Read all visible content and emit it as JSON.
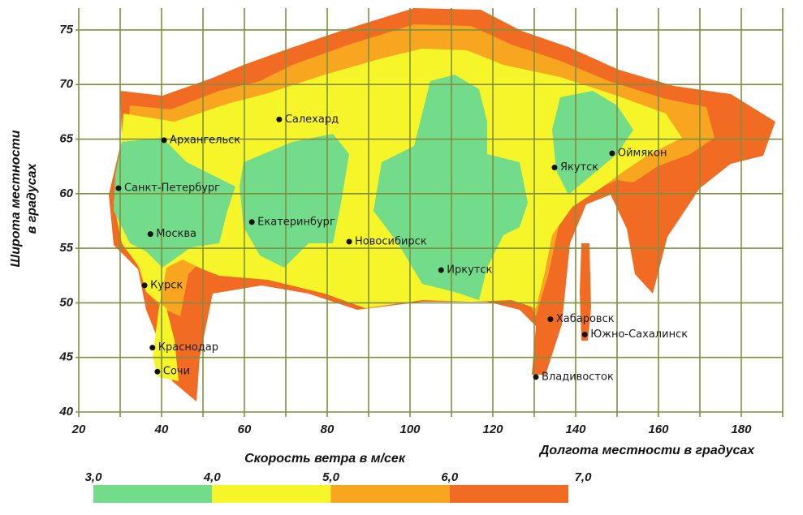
{
  "map": {
    "xlim": [
      20,
      190
    ],
    "ylim": [
      40,
      77
    ],
    "xticks": [
      20,
      40,
      60,
      80,
      100,
      120,
      140,
      160,
      180
    ],
    "grid_x": [
      20,
      30,
      40,
      50,
      60,
      70,
      80,
      90,
      100,
      110,
      120,
      130,
      140,
      150,
      160,
      170,
      180,
      190
    ],
    "yticks": [
      40,
      45,
      50,
      55,
      60,
      65,
      70,
      75
    ],
    "grid": true,
    "grid_color": "#7f8f3f",
    "x_label": "Долгота местности в градусах",
    "y_label": [
      "Широта местности",
      "в градусах"
    ],
    "cities": [
      {
        "name": "Салехард",
        "lon": 68.4,
        "lat": 66.8
      },
      {
        "name": "Архангельск",
        "lon": 40.6,
        "lat": 64.9
      },
      {
        "name": "Санкт-Петербург",
        "lon": 29.6,
        "lat": 60.5
      },
      {
        "name": "Москва",
        "lon": 37.3,
        "lat": 56.3
      },
      {
        "name": "Екатеринбург",
        "lon": 61.8,
        "lat": 57.4
      },
      {
        "name": "Новосибирск",
        "lon": 85.3,
        "lat": 55.6
      },
      {
        "name": "Иркутск",
        "lon": 107.5,
        "lat": 53.0
      },
      {
        "name": "Якутск",
        "lon": 134.9,
        "lat": 62.4
      },
      {
        "name": "Оймякон",
        "lon": 148.8,
        "lat": 63.7
      },
      {
        "name": "Курск",
        "lon": 35.9,
        "lat": 51.6
      },
      {
        "name": "Хабаровск",
        "lon": 133.9,
        "lat": 48.5
      },
      {
        "name": "Южно-Сахалинск",
        "lon": 142.2,
        "lat": 47.1
      },
      {
        "name": "Краснодар",
        "lon": 37.8,
        "lat": 45.9
      },
      {
        "name": "Сочи",
        "lon": 39.0,
        "lat": 43.7
      },
      {
        "name": "Владивосток",
        "lon": 130.4,
        "lat": 43.2
      }
    ],
    "legend": {
      "title": "Скорость ветра в м/сек",
      "ticks": [
        {
          "value": 3,
          "label": "3,0"
        },
        {
          "value": 4,
          "label": "4,0"
        },
        {
          "value": 5,
          "label": "5,0"
        },
        {
          "value": 6,
          "label": "6,0"
        },
        {
          "value": 7,
          "label": "7,0"
        }
      ],
      "colors": [
        "#72dc8a",
        "#f6f52a",
        "#f8a51f",
        "#f26b22"
      ]
    }
  }
}
